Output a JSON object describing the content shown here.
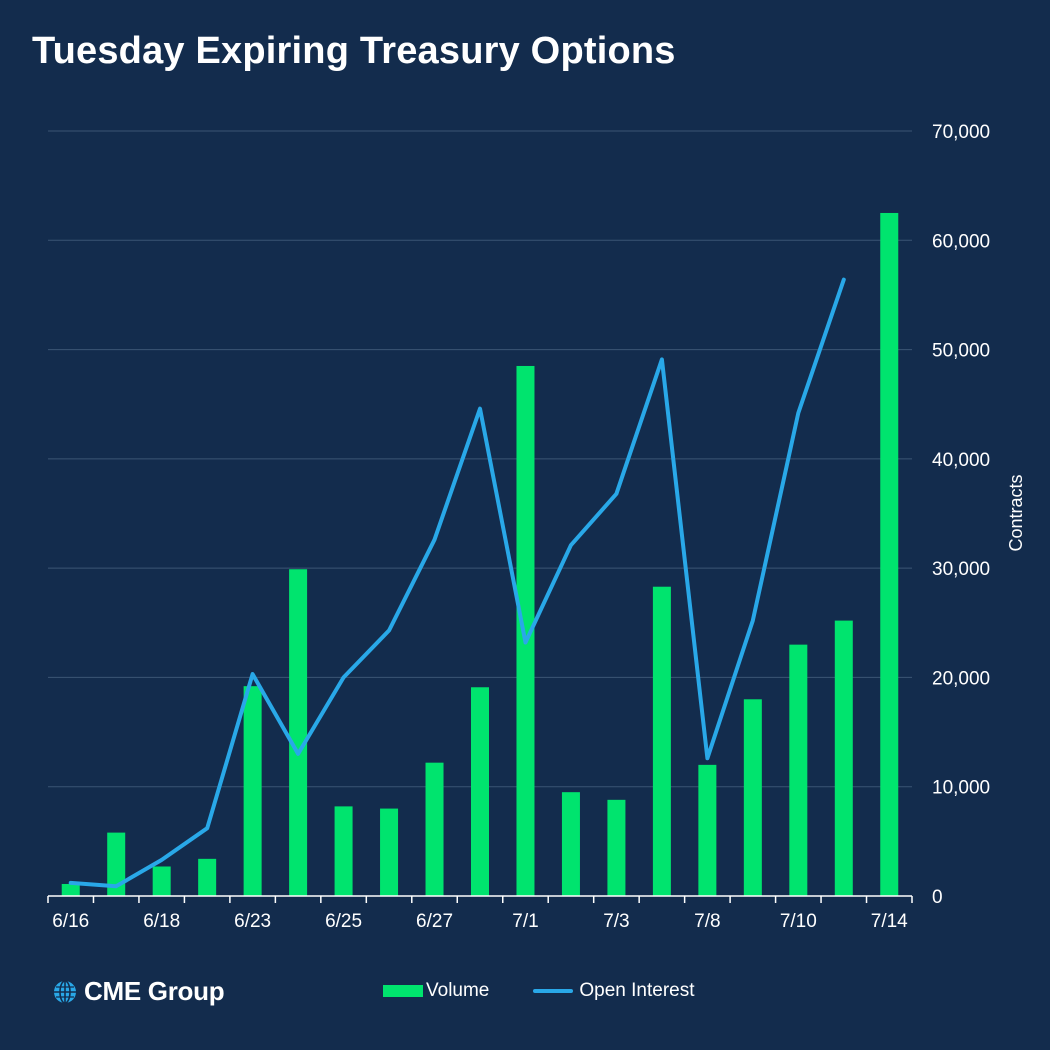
{
  "colors": {
    "background": "#132c4d",
    "volume": "#00e46e",
    "open_interest": "#29a8e8",
    "grid": "#3b5574"
  },
  "logo": {
    "text": "CME Group",
    "icon": "globe-icon"
  },
  "legend": {
    "volume": "Volume",
    "open_interest": "Open Interest"
  },
  "chart_data": {
    "type": "bar",
    "title": "Tuesday Expiring Treasury Options",
    "xlabel": "",
    "ylabel": "Contracts",
    "ylim": [
      0,
      70000
    ],
    "yticks": [
      "0",
      "10,000",
      "20,000",
      "30,000",
      "40,000",
      "50,000",
      "60,000",
      "70,000"
    ],
    "ytick_values": [
      0,
      10000,
      20000,
      30000,
      40000,
      50000,
      60000,
      70000
    ],
    "x_tick_labels": [
      "6/16",
      "",
      "6/18",
      "",
      "6/23",
      "",
      "6/25",
      "",
      "6/27",
      "",
      "7/1",
      "",
      "7/3",
      "",
      "7/8",
      "",
      "7/10",
      "",
      "7/14"
    ],
    "grid": true,
    "legend_position": "bottom",
    "y_axis_side": "right",
    "series": [
      {
        "name": "Volume",
        "type": "bar",
        "values": [
          1100,
          5800,
          2700,
          3400,
          19200,
          29900,
          8200,
          8000,
          12200,
          19100,
          48500,
          9500,
          8800,
          28300,
          12000,
          18000,
          23000,
          25200,
          62500
        ]
      },
      {
        "name": "Open Interest",
        "type": "line",
        "values": [
          1200,
          900,
          3300,
          6200,
          20300,
          13000,
          20000,
          24300,
          32600,
          44600,
          23200,
          32100,
          36800,
          49100,
          12600,
          25200,
          44200,
          56400,
          null
        ]
      }
    ]
  }
}
